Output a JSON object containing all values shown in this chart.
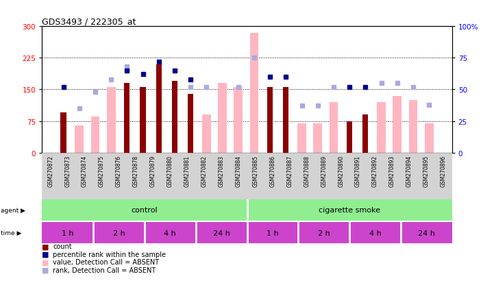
{
  "title": "GDS3493 / 222305_at",
  "samples": [
    "GSM270872",
    "GSM270873",
    "GSM270874",
    "GSM270875",
    "GSM270876",
    "GSM270878",
    "GSM270879",
    "GSM270880",
    "GSM270881",
    "GSM270882",
    "GSM270883",
    "GSM270884",
    "GSM270885",
    "GSM270886",
    "GSM270887",
    "GSM270888",
    "GSM270889",
    "GSM270890",
    "GSM270891",
    "GSM270892",
    "GSM270893",
    "GSM270894",
    "GSM270895",
    "GSM270896"
  ],
  "count_values": [
    95,
    null,
    null,
    null,
    165,
    155,
    210,
    170,
    140,
    null,
    null,
    null,
    null,
    155,
    155,
    null,
    null,
    null,
    75,
    90,
    null,
    null,
    null,
    null
  ],
  "absent_count_values": [
    null,
    65,
    85,
    155,
    null,
    null,
    null,
    null,
    null,
    90,
    165,
    155,
    285,
    null,
    null,
    70,
    70,
    120,
    null,
    null,
    120,
    135,
    125,
    70
  ],
  "rank_values_pct": [
    52,
    null,
    null,
    null,
    65,
    62,
    72,
    65,
    58,
    null,
    null,
    null,
    null,
    60,
    60,
    null,
    null,
    null,
    52,
    52,
    null,
    null,
    null,
    null
  ],
  "absent_rank_values_pct": [
    null,
    35,
    48,
    58,
    68,
    null,
    null,
    null,
    52,
    52,
    null,
    52,
    75,
    null,
    null,
    37,
    37,
    52,
    null,
    null,
    55,
    55,
    52,
    38
  ],
  "left_ylim": [
    0,
    300
  ],
  "right_ylim": [
    0,
    100
  ],
  "left_yticks": [
    0,
    75,
    150,
    225,
    300
  ],
  "right_yticks": [
    0,
    25,
    50,
    75,
    100
  ],
  "right_yticklabels": [
    "0",
    "25",
    "50",
    "75",
    "100%"
  ],
  "bar_color_count": "#8B0000",
  "bar_color_absent": "#FFB6C1",
  "marker_color_rank": "#00008B",
  "marker_color_absent_rank": "#AAAADD",
  "agent_groups": [
    {
      "label": "control",
      "start": 0,
      "end": 12,
      "color": "#90EE90"
    },
    {
      "label": "cigarette smoke",
      "start": 12,
      "end": 24,
      "color": "#90EE90"
    }
  ],
  "time_groups": [
    {
      "label": "1 h",
      "start": 0,
      "end": 3
    },
    {
      "label": "2 h",
      "start": 3,
      "end": 6
    },
    {
      "label": "4 h",
      "start": 6,
      "end": 9
    },
    {
      "label": "24 h",
      "start": 9,
      "end": 12
    },
    {
      "label": "1 h",
      "start": 12,
      "end": 15
    },
    {
      "label": "2 h",
      "start": 15,
      "end": 18
    },
    {
      "label": "4 h",
      "start": 18,
      "end": 21
    },
    {
      "label": "24 h",
      "start": 21,
      "end": 24
    }
  ],
  "time_color": "#CC44CC",
  "legend_items": [
    {
      "color": "#8B0000",
      "label": "count"
    },
    {
      "color": "#00008B",
      "label": "percentile rank within the sample"
    },
    {
      "color": "#FFB6C1",
      "label": "value, Detection Call = ABSENT"
    },
    {
      "color": "#AAAADD",
      "label": "rank, Detection Call = ABSENT"
    }
  ]
}
